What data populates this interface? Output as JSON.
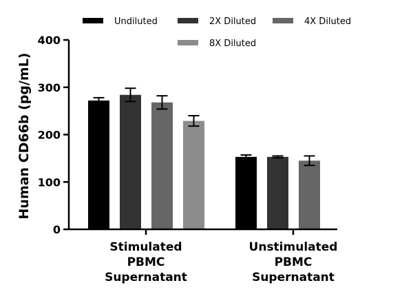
{
  "chart_data": {
    "type": "bar",
    "title": "",
    "xlabel": "",
    "ylabel": "Human CD66b (pg/mL)",
    "ylim": [
      0,
      400
    ],
    "yticks": [
      0,
      100,
      200,
      300,
      400
    ],
    "categories": [
      [
        "Stimulated",
        "PBMC",
        "Supernatant"
      ],
      [
        "Unstimulated",
        "PBMC",
        "Supernatant"
      ]
    ],
    "series": [
      {
        "name": "Undiluted",
        "color": "#000000",
        "values": [
          272,
          153
        ],
        "errors": [
          6,
          4
        ]
      },
      {
        "name": "2X Diluted",
        "color": "#333333",
        "values": [
          284,
          153
        ],
        "errors": [
          14,
          2
        ]
      },
      {
        "name": "4X Diluted",
        "color": "#666666",
        "values": [
          268,
          145
        ],
        "errors": [
          14,
          10
        ]
      },
      {
        "name": "8X Diluted",
        "color": "#8c8c8c",
        "values": [
          229,
          null
        ],
        "errors": [
          11,
          null
        ]
      }
    ],
    "legend": {
      "position": "top"
    }
  }
}
